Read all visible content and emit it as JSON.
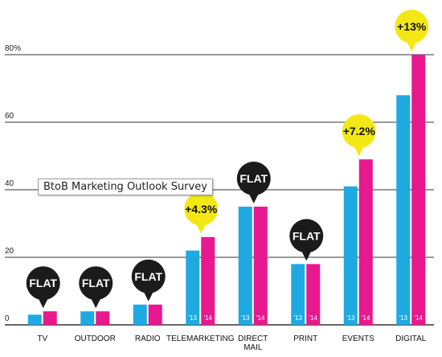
{
  "tooltip": "BtoB Marketing Outlook Survey",
  "chart_data": {
    "type": "bar",
    "categories": [
      "TV",
      "OUTDOOR",
      "RADIO",
      "TELEMARKETING",
      "DIRECT MAIL",
      "PRINT",
      "EVENTS",
      "DIGITAL"
    ],
    "series": [
      {
        "name": "'13",
        "color": "#1fa9e1",
        "values": [
          3,
          4,
          6,
          22,
          35,
          18,
          41,
          68
        ]
      },
      {
        "name": "'14",
        "color": "#e8188e",
        "values": [
          4,
          4,
          6,
          26,
          35,
          18,
          49,
          80
        ]
      }
    ],
    "bar_labels": [
      "'13",
      "'14"
    ],
    "changes": [
      {
        "text": "FLAT",
        "style": "dark"
      },
      {
        "text": "FLAT",
        "style": "dark"
      },
      {
        "text": "FLAT",
        "style": "dark"
      },
      {
        "text": "+4.3%",
        "style": "yellow"
      },
      {
        "text": "FLAT",
        "style": "dark"
      },
      {
        "text": "FLAT",
        "style": "dark"
      },
      {
        "text": "+7.2%",
        "style": "yellow"
      },
      {
        "text": "+13%",
        "style": "yellow"
      }
    ],
    "yticks": [
      "0",
      "20",
      "40",
      "60",
      "80%"
    ],
    "ytick_values": [
      0,
      20,
      40,
      60,
      80
    ],
    "ylim": [
      0,
      80
    ],
    "grid": true,
    "colors": {
      "dark_bubble": "#1b1b1b",
      "yellow_bubble": "#f3e816",
      "grid": "#333333"
    }
  }
}
